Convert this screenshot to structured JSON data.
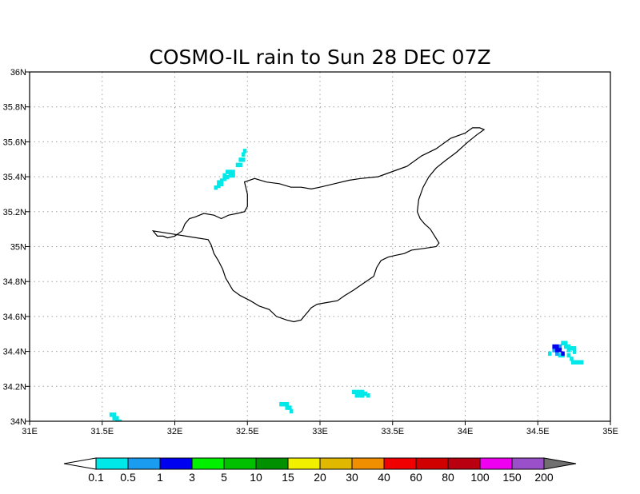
{
  "title": "COSMO-IL rain to Sun 28 DEC 07Z",
  "axes": {
    "lon_range": [
      31,
      35
    ],
    "lat_range": [
      34,
      36
    ],
    "x_ticks": [
      {
        "value": 31.0,
        "label": "31E"
      },
      {
        "value": 31.5,
        "label": "31.5E"
      },
      {
        "value": 32.0,
        "label": "32E"
      },
      {
        "value": 32.5,
        "label": "32.5E"
      },
      {
        "value": 33.0,
        "label": "33E"
      },
      {
        "value": 33.5,
        "label": "33.5E"
      },
      {
        "value": 34.0,
        "label": "34E"
      },
      {
        "value": 34.5,
        "label": "34.5E"
      },
      {
        "value": 35.0,
        "label": "35E"
      }
    ],
    "y_ticks": [
      {
        "value": 34.0,
        "label": "34N"
      },
      {
        "value": 34.2,
        "label": "34.2N"
      },
      {
        "value": 34.4,
        "label": "34.4N"
      },
      {
        "value": 34.6,
        "label": "34.6N"
      },
      {
        "value": 34.8,
        "label": "34.8N"
      },
      {
        "value": 35.0,
        "label": "35N"
      },
      {
        "value": 35.2,
        "label": "35.2N"
      },
      {
        "value": 35.4,
        "label": "35.4N"
      },
      {
        "value": 35.6,
        "label": "35.6N"
      },
      {
        "value": 35.8,
        "label": "35.8N"
      },
      {
        "value": 36.0,
        "label": "36N"
      }
    ],
    "grid": true
  },
  "coastline_lonlat": [
    [
      31.85,
      35.09
    ],
    [
      31.88,
      35.06
    ],
    [
      31.92,
      35.06
    ],
    [
      31.95,
      35.05
    ],
    [
      32.0,
      35.06
    ],
    [
      32.05,
      35.09
    ],
    [
      32.07,
      35.13
    ],
    [
      32.1,
      35.16
    ],
    [
      32.14,
      35.17
    ],
    [
      32.2,
      35.19
    ],
    [
      32.27,
      35.18
    ],
    [
      32.32,
      35.16
    ],
    [
      32.37,
      35.18
    ],
    [
      32.43,
      35.19
    ],
    [
      32.48,
      35.2
    ],
    [
      32.5,
      35.23
    ],
    [
      32.5,
      35.3
    ],
    [
      32.48,
      35.37
    ],
    [
      32.55,
      35.39
    ],
    [
      32.63,
      35.37
    ],
    [
      32.72,
      35.36
    ],
    [
      32.8,
      35.34
    ],
    [
      32.87,
      35.34
    ],
    [
      32.94,
      35.33
    ],
    [
      33.0,
      35.34
    ],
    [
      33.1,
      35.36
    ],
    [
      33.2,
      35.38
    ],
    [
      33.28,
      35.39
    ],
    [
      33.4,
      35.4
    ],
    [
      33.5,
      35.43
    ],
    [
      33.6,
      35.46
    ],
    [
      33.7,
      35.52
    ],
    [
      33.8,
      35.56
    ],
    [
      33.9,
      35.62
    ],
    [
      34.0,
      35.65
    ],
    [
      34.05,
      35.68
    ],
    [
      34.1,
      35.68
    ],
    [
      34.13,
      35.67
    ],
    [
      34.08,
      35.64
    ],
    [
      34.02,
      35.6
    ],
    [
      33.94,
      35.54
    ],
    [
      33.86,
      35.49
    ],
    [
      33.8,
      35.45
    ],
    [
      33.75,
      35.4
    ],
    [
      33.71,
      35.34
    ],
    [
      33.68,
      35.27
    ],
    [
      33.67,
      35.2
    ],
    [
      33.69,
      35.16
    ],
    [
      33.72,
      35.13
    ],
    [
      33.76,
      35.1
    ],
    [
      33.79,
      35.06
    ],
    [
      33.82,
      35.02
    ],
    [
      33.8,
      35.0
    ],
    [
      33.72,
      34.99
    ],
    [
      33.63,
      34.98
    ],
    [
      33.58,
      34.96
    ],
    [
      33.52,
      34.95
    ],
    [
      33.47,
      34.94
    ],
    [
      33.42,
      34.92
    ],
    [
      33.39,
      34.88
    ],
    [
      33.37,
      34.83
    ],
    [
      33.3,
      34.79
    ],
    [
      33.23,
      34.75
    ],
    [
      33.17,
      34.72
    ],
    [
      33.12,
      34.69
    ],
    [
      33.05,
      34.68
    ],
    [
      32.98,
      34.67
    ],
    [
      32.94,
      34.65
    ],
    [
      32.91,
      34.62
    ],
    [
      32.89,
      34.6
    ],
    [
      32.87,
      34.58
    ],
    [
      32.82,
      34.57
    ],
    [
      32.77,
      34.58
    ],
    [
      32.7,
      34.6
    ],
    [
      32.65,
      34.64
    ],
    [
      32.58,
      34.66
    ],
    [
      32.52,
      34.69
    ],
    [
      32.45,
      34.72
    ],
    [
      32.4,
      34.75
    ],
    [
      32.35,
      34.82
    ],
    [
      32.33,
      34.87
    ],
    [
      32.3,
      34.92
    ],
    [
      32.27,
      34.96
    ],
    [
      32.25,
      35.01
    ],
    [
      32.23,
      35.04
    ]
  ],
  "rain_cells": {
    "cell_size_deg": [
      0.025,
      0.025
    ],
    "light": [
      [
        32.27,
        35.35
      ],
      [
        32.29,
        35.36
      ],
      [
        32.29,
        35.38
      ],
      [
        32.31,
        35.37
      ],
      [
        32.31,
        35.39
      ],
      [
        32.33,
        35.4
      ],
      [
        32.33,
        35.42
      ],
      [
        32.35,
        35.41
      ],
      [
        32.37,
        35.42
      ],
      [
        32.37,
        35.44
      ],
      [
        32.35,
        35.44
      ],
      [
        32.39,
        35.44
      ],
      [
        32.39,
        35.42
      ],
      [
        32.42,
        35.48
      ],
      [
        32.44,
        35.48
      ],
      [
        32.44,
        35.51
      ],
      [
        32.46,
        35.51
      ],
      [
        32.46,
        35.54
      ],
      [
        32.47,
        35.56
      ],
      [
        31.55,
        34.05
      ],
      [
        31.57,
        34.05
      ],
      [
        31.57,
        34.03
      ],
      [
        31.59,
        34.03
      ],
      [
        31.61,
        34.01
      ],
      [
        31.59,
        34.01
      ],
      [
        32.72,
        34.11
      ],
      [
        32.74,
        34.11
      ],
      [
        32.76,
        34.11
      ],
      [
        32.76,
        34.09
      ],
      [
        32.78,
        34.09
      ],
      [
        32.79,
        34.07
      ],
      [
        33.22,
        34.18
      ],
      [
        33.24,
        34.18
      ],
      [
        33.26,
        34.18
      ],
      [
        33.28,
        34.18
      ],
      [
        33.3,
        34.17
      ],
      [
        33.24,
        34.16
      ],
      [
        33.26,
        34.16
      ],
      [
        33.28,
        34.16
      ],
      [
        33.32,
        34.16
      ],
      [
        33.13,
        34.0
      ],
      [
        33.15,
        34.0
      ],
      [
        34.66,
        34.46
      ],
      [
        34.68,
        34.46
      ],
      [
        34.68,
        34.44
      ],
      [
        34.7,
        34.44
      ],
      [
        34.72,
        34.43
      ],
      [
        34.74,
        34.43
      ],
      [
        34.7,
        34.42
      ],
      [
        34.66,
        34.39
      ],
      [
        34.64,
        34.39
      ],
      [
        34.7,
        34.39
      ],
      [
        34.72,
        34.37
      ],
      [
        34.73,
        34.35
      ],
      [
        34.75,
        34.35
      ],
      [
        34.77,
        34.35
      ],
      [
        34.79,
        34.35
      ],
      [
        34.74,
        34.41
      ],
      [
        34.57,
        34.4
      ]
    ],
    "medium": [
      [
        34.6,
        34.42
      ],
      [
        34.64,
        34.44
      ],
      [
        34.62,
        34.4
      ]
    ],
    "heavy": [
      [
        34.6,
        34.44
      ],
      [
        34.62,
        34.44
      ],
      [
        34.62,
        34.42
      ],
      [
        34.64,
        34.42
      ],
      [
        34.66,
        34.4
      ]
    ]
  },
  "colorbar": {
    "labels": [
      "0.1",
      "0.5",
      "1",
      "3",
      "5",
      "10",
      "15",
      "20",
      "30",
      "40",
      "60",
      "80",
      "100",
      "150",
      "200"
    ],
    "colors": [
      "#00e8e8",
      "#1a9df0",
      "#0000f0",
      "#00f000",
      "#00c000",
      "#009000",
      "#f0f000",
      "#e0b800",
      "#f09000",
      "#f00000",
      "#d00000",
      "#b80010",
      "#f000f0",
      "#9a50c8"
    ],
    "under_color": "#ffffff",
    "over_color": "#707070"
  },
  "colors": {
    "light_rain": "#00e8e8",
    "medium_rain": "#1a9df0",
    "heavy_rain": "#0000f0",
    "coastline": "#000000",
    "grid": "#a0a0a0"
  }
}
